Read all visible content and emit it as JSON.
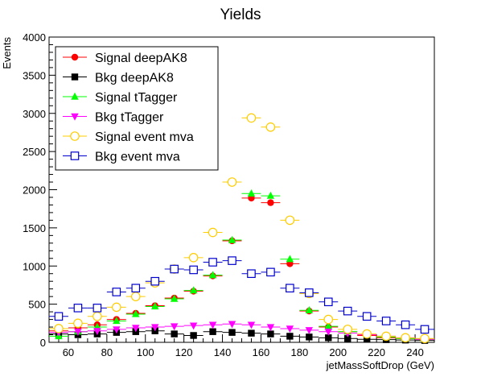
{
  "chart_data": {
    "type": "scatter",
    "title": "Yields",
    "xlabel": "jetMassSoftDrop (GeV)",
    "ylabel": "Events",
    "xlim": [
      50,
      250
    ],
    "ylim": [
      0,
      4000
    ],
    "xticks": [
      60,
      80,
      100,
      120,
      140,
      160,
      180,
      200,
      220,
      240
    ],
    "yticks": [
      0,
      500,
      1000,
      1500,
      2000,
      2500,
      3000,
      3500,
      4000
    ],
    "bin_width": 10,
    "legend_position": "top-left",
    "x": [
      55,
      65,
      75,
      85,
      95,
      105,
      115,
      125,
      135,
      145,
      155,
      165,
      175,
      185,
      195,
      205,
      215,
      225,
      235,
      245
    ],
    "series": [
      {
        "name": "Signal deepAK8",
        "color": "#ff0000",
        "marker": "circle-filled",
        "values": [
          150,
          190,
          230,
          300,
          380,
          480,
          580,
          670,
          870,
          1330,
          1890,
          1830,
          1030,
          410,
          200,
          140,
          90,
          60,
          50,
          40
        ]
      },
      {
        "name": "Bkg deepAK8",
        "color": "#000000",
        "marker": "square-filled",
        "values": [
          110,
          100,
          110,
          130,
          140,
          150,
          110,
          90,
          140,
          130,
          120,
          110,
          80,
          70,
          60,
          50,
          40,
          35,
          30,
          25
        ]
      },
      {
        "name": "Signal tTagger",
        "color": "#00ff00",
        "marker": "triangle-up-filled",
        "values": [
          80,
          140,
          200,
          280,
          370,
          470,
          570,
          680,
          880,
          1340,
          1950,
          1920,
          1090,
          420,
          210,
          140,
          100,
          70,
          50,
          40
        ]
      },
      {
        "name": "Bkg tTagger",
        "color": "#ff00ff",
        "marker": "triangle-down-filled",
        "values": [
          130,
          140,
          150,
          170,
          190,
          200,
          210,
          220,
          230,
          240,
          230,
          200,
          180,
          160,
          140,
          120,
          100,
          80,
          60,
          40
        ]
      },
      {
        "name": "Signal event mva",
        "color": "#ffcc00",
        "marker": "circle-open",
        "values": [
          180,
          250,
          340,
          460,
          600,
          780,
          960,
          1110,
          1440,
          2100,
          2940,
          2820,
          1600,
          640,
          300,
          170,
          110,
          80,
          60,
          50
        ]
      },
      {
        "name": "Bkg event mva",
        "color": "#0000cc",
        "marker": "square-open",
        "values": [
          340,
          450,
          450,
          660,
          710,
          800,
          960,
          950,
          1050,
          1070,
          900,
          920,
          710,
          650,
          530,
          410,
          340,
          280,
          230,
          170
        ]
      }
    ]
  }
}
